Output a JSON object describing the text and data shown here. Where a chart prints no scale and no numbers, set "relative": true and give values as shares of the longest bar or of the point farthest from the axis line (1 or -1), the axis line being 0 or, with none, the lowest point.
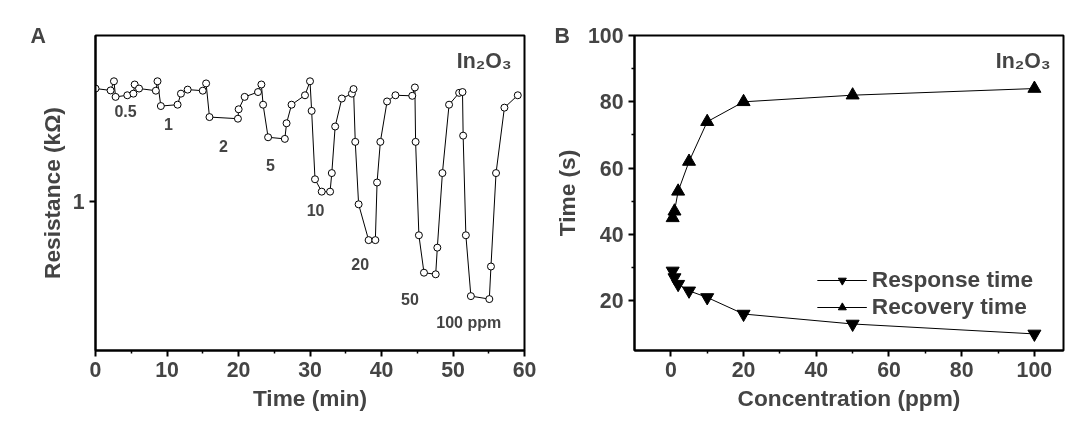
{
  "chart_data": [
    {
      "type": "line",
      "relative": true,
      "marker": "circle",
      "line_style": "solid",
      "grid": false,
      "xlabel": "Time (min)",
      "ylabel": "Resistance (kΩ)",
      "xlim": [
        0,
        60
      ],
      "xticks": [
        0,
        10,
        20,
        30,
        40,
        50,
        60
      ],
      "x": [
        0,
        2.11,
        2.58,
        2.81,
        4.45,
        5.3,
        5.48,
        6.09,
        8.44,
        8.67,
        9.14,
        11.48,
        11.95,
        12.89,
        15.0,
        15.47,
        15.94,
        19.92,
        20.02,
        20.86,
        22.73,
        23.2,
        23.44,
        24.14,
        26.48,
        26.72,
        27.42,
        29.3,
        30.0,
        30.23,
        30.7,
        31.64,
        32.81,
        33.05,
        33.52,
        34.45,
        35.86,
        36.09,
        36.33,
        36.8,
        38.2,
        39.14,
        39.38,
        39.84,
        40.78,
        41.95,
        44.3,
        44.67,
        44.77,
        45.23,
        45.94,
        47.58,
        47.81,
        48.52,
        49.45,
        50.86,
        51.33,
        51.42,
        51.8,
        52.5,
        55.08,
        55.31,
        56.02,
        57.19,
        59.06
      ],
      "series": [
        {
          "color": "#000000",
          "values": [
            0.973,
            0.966,
            1,
            0.942,
            0.948,
            0.954,
            0.988,
            0.973,
            0.965,
            1,
            0.908,
            0.913,
            0.954,
            0.969,
            0.965,
            0.992,
            0.867,
            0.861,
            0.896,
            0.942,
            0.96,
            0.988,
            0.913,
            0.792,
            0.786,
            0.844,
            0.913,
            0.948,
            1,
            0.89,
            0.636,
            0.59,
            0.59,
            0.659,
            0.832,
            0.936,
            0.954,
            0.971,
            0.775,
            0.543,
            0.41,
            0.41,
            0.624,
            0.775,
            0.925,
            0.948,
            0.946,
            0.977,
            0.775,
            0.428,
            0.289,
            0.283,
            0.382,
            0.659,
            0.913,
            0.957,
            0.96,
            0.798,
            0.428,
            0.202,
            0.191,
            0.312,
            0.659,
            0.902,
            0.948
          ]
        }
      ],
      "annotations": [
        "A",
        "In₂O₃",
        "1",
        "0.5",
        "1",
        "2",
        "5",
        "10",
        "20",
        "50",
        "100 ppm"
      ]
    },
    {
      "type": "line",
      "grid": false,
      "legend": "bottom right",
      "xlabel": "Concentration (ppm)",
      "ylabel": "Time (s)",
      "xlim": [
        -10,
        108
      ],
      "xticks": [
        0,
        20,
        40,
        60,
        80,
        100
      ],
      "ylim": [
        5,
        100
      ],
      "yticks": [
        20,
        40,
        60,
        80,
        100
      ],
      "x": [
        0.5,
        1,
        2,
        5,
        10,
        20,
        50,
        100
      ],
      "series": [
        {
          "name": "Response time",
          "color": "#000000",
          "marker": "triangle_down",
          "values": [
            29,
            27,
            25,
            23,
            21,
            16,
            13,
            10
          ]
        },
        {
          "name": "Recovery time",
          "color": "#000000",
          "marker": "triangle",
          "values": [
            45,
            47,
            53,
            62,
            74,
            80,
            82,
            84
          ]
        }
      ],
      "annotations": [
        "B",
        "In₂O₃"
      ]
    }
  ]
}
